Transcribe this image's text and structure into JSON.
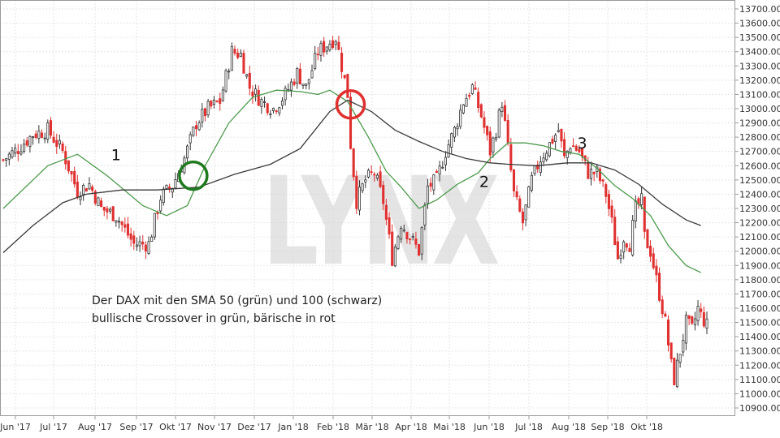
{
  "chart_data": {
    "type": "candlestick",
    "title": "",
    "xlabel": "",
    "ylabel": "",
    "ylim": [
      10900,
      13700
    ],
    "y_ticks": [
      "10900.00",
      "11000.00",
      "11100.00",
      "11200.00",
      "11300.00",
      "11400.00",
      "11500.00",
      "11600.00",
      "11700.00",
      "11800.00",
      "11900.00",
      "12000.00",
      "12100.00",
      "12200.00",
      "12300.00",
      "12400.00",
      "12500.00",
      "12600.00",
      "12700.00",
      "12800.00",
      "12900.00",
      "13000.00",
      "13100.00",
      "13200.00",
      "13300.00",
      "13400.00",
      "13500.00",
      "13600.00",
      "13700.00"
    ],
    "x_ticks": [
      "Jun '17",
      "Jul '17",
      "Aug '17",
      "Sep '17",
      "Okt '17",
      "Nov '17",
      "Dez '17",
      "Jan '18",
      "Feb '18",
      "Mär '18",
      "Apr '18",
      "Mai '18",
      "Jun '18",
      "Jul '18",
      "Aug '18",
      "Sep '18",
      "Okt '18"
    ],
    "grid": true,
    "up_color": "#333333",
    "down_color": "#e03030",
    "close_path": [
      [
        0,
        12640
      ],
      [
        5,
        12720
      ],
      [
        10,
        12820
      ],
      [
        15,
        12850
      ],
      [
        20,
        12700
      ],
      [
        25,
        12420
      ],
      [
        29,
        12470
      ],
      [
        33,
        12300
      ],
      [
        38,
        12250
      ],
      [
        44,
        12050
      ],
      [
        49,
        12050
      ],
      [
        53,
        12380
      ],
      [
        57,
        12460
      ],
      [
        61,
        12650
      ],
      [
        65,
        12900
      ],
      [
        69,
        13000
      ],
      [
        73,
        13050
      ],
      [
        77,
        13400
      ],
      [
        80,
        13380
      ],
      [
        83,
        13150
      ],
      [
        87,
        13050
      ],
      [
        91,
        13000
      ],
      [
        95,
        13100
      ],
      [
        99,
        13250
      ],
      [
        102,
        13150
      ],
      [
        106,
        13400
      ],
      [
        109,
        13450
      ],
      [
        112,
        13500
      ],
      [
        114,
        13300
      ],
      [
        116,
        13100
      ],
      [
        117,
        12750
      ],
      [
        119,
        12350
      ],
      [
        122,
        12500
      ],
      [
        125,
        12550
      ],
      [
        128,
        12350
      ],
      [
        131,
        11950
      ],
      [
        134,
        12200
      ],
      [
        137,
        12100
      ],
      [
        140,
        12000
      ],
      [
        143,
        12450
      ],
      [
        146,
        12500
      ],
      [
        149,
        12700
      ],
      [
        152,
        12850
      ],
      [
        155,
        13050
      ],
      [
        158,
        13150
      ],
      [
        161,
        12950
      ],
      [
        164,
        12700
      ],
      [
        166,
        12850
      ],
      [
        168,
        13050
      ],
      [
        172,
        12400
      ],
      [
        175,
        12200
      ],
      [
        178,
        12500
      ],
      [
        181,
        12650
      ],
      [
        184,
        12750
      ],
      [
        187,
        12850
      ],
      [
        189,
        12650
      ],
      [
        191,
        12750
      ],
      [
        194,
        12700
      ],
      [
        197,
        12550
      ],
      [
        200,
        12550
      ],
      [
        203,
        12400
      ],
      [
        205,
        12200
      ],
      [
        207,
        11950
      ],
      [
        209,
        12100
      ],
      [
        211,
        12050
      ],
      [
        213,
        12300
      ],
      [
        215,
        12350
      ],
      [
        216,
        12100
      ],
      [
        218,
        12000
      ],
      [
        220,
        11800
      ],
      [
        222,
        11600
      ],
      [
        223,
        11500
      ],
      [
        225,
        11200
      ],
      [
        226,
        11100
      ],
      [
        228,
        11300
      ],
      [
        230,
        11500
      ],
      [
        232,
        11450
      ],
      [
        234,
        11600
      ],
      [
        235,
        11550
      ],
      [
        237,
        11480
      ]
    ],
    "series": [
      {
        "name": "SMA 50",
        "color": "#4c9a4c",
        "points": [
          [
            0,
            12300
          ],
          [
            15,
            12600
          ],
          [
            25,
            12680
          ],
          [
            35,
            12530
          ],
          [
            47,
            12320
          ],
          [
            55,
            12250
          ],
          [
            62,
            12320
          ],
          [
            68,
            12600
          ],
          [
            76,
            12900
          ],
          [
            84,
            13080
          ],
          [
            92,
            13130
          ],
          [
            100,
            13120
          ],
          [
            106,
            13100
          ],
          [
            110,
            13130
          ],
          [
            116,
            13050
          ],
          [
            123,
            12800
          ],
          [
            129,
            12560
          ],
          [
            134,
            12450
          ],
          [
            140,
            12300
          ],
          [
            146,
            12360
          ],
          [
            153,
            12470
          ],
          [
            160,
            12550
          ],
          [
            164,
            12650
          ],
          [
            170,
            12760
          ],
          [
            176,
            12760
          ],
          [
            182,
            12740
          ],
          [
            188,
            12700
          ],
          [
            194,
            12680
          ],
          [
            200,
            12580
          ],
          [
            206,
            12460
          ],
          [
            212,
            12370
          ],
          [
            218,
            12250
          ],
          [
            224,
            12040
          ],
          [
            230,
            11900
          ],
          [
            235,
            11850
          ]
        ]
      },
      {
        "name": "SMA 100",
        "color": "#3a3a3a",
        "points": [
          [
            0,
            11990
          ],
          [
            10,
            12180
          ],
          [
            20,
            12340
          ],
          [
            28,
            12400
          ],
          [
            40,
            12430
          ],
          [
            52,
            12430
          ],
          [
            66,
            12450
          ],
          [
            78,
            12540
          ],
          [
            90,
            12610
          ],
          [
            100,
            12720
          ],
          [
            110,
            12980
          ],
          [
            116,
            13060
          ],
          [
            124,
            12980
          ],
          [
            132,
            12850
          ],
          [
            140,
            12770
          ],
          [
            148,
            12700
          ],
          [
            156,
            12650
          ],
          [
            164,
            12620
          ],
          [
            170,
            12610
          ],
          [
            180,
            12600
          ],
          [
            190,
            12620
          ],
          [
            198,
            12620
          ],
          [
            206,
            12570
          ],
          [
            214,
            12470
          ],
          [
            222,
            12330
          ],
          [
            230,
            12220
          ],
          [
            235,
            12180
          ]
        ]
      }
    ],
    "markers": [
      {
        "kind": "bullish",
        "color": "#1e7a1e",
        "x": 64,
        "y": 12530
      },
      {
        "kind": "bearish",
        "color": "#e03030",
        "x": 117,
        "y": 13030
      }
    ],
    "labels": [
      {
        "text": "1",
        "x": 38,
        "y": 12640
      },
      {
        "text": "2",
        "x": 162,
        "y": 12450
      },
      {
        "text": "3",
        "x": 195,
        "y": 12720
      }
    ],
    "annotation": {
      "line1": "Der DAX mit den SMA 50 (grün) und 100 (schwarz)",
      "line2": "bullische Crossover in grün, bärische in rot"
    },
    "watermark": "LYNX"
  }
}
